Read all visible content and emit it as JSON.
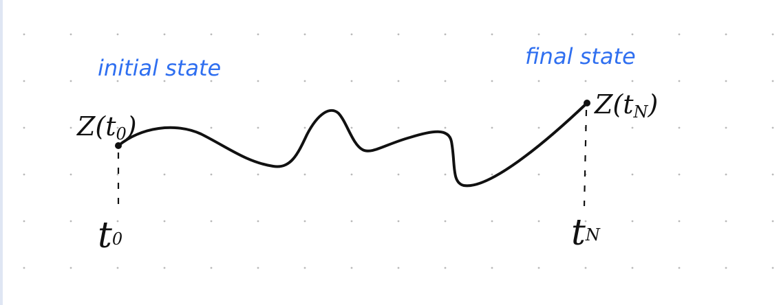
{
  "labels": {
    "initial_state": "initial state",
    "final_state": "final state",
    "z_start_prefix": "Z(t",
    "z_start_sub": "0",
    "z_start_suffix": ")",
    "z_end_prefix": "Z(t",
    "z_end_sub": "N",
    "z_end_suffix": ")",
    "t_start_main": "t",
    "t_start_sub": "0",
    "t_end_main": "t",
    "t_end_sub": "N"
  },
  "colors": {
    "accent_blue": "#2f6ff0",
    "ink": "#111111",
    "grid_dot": "#b9b9b9",
    "left_border": "#dfe6f3"
  }
}
